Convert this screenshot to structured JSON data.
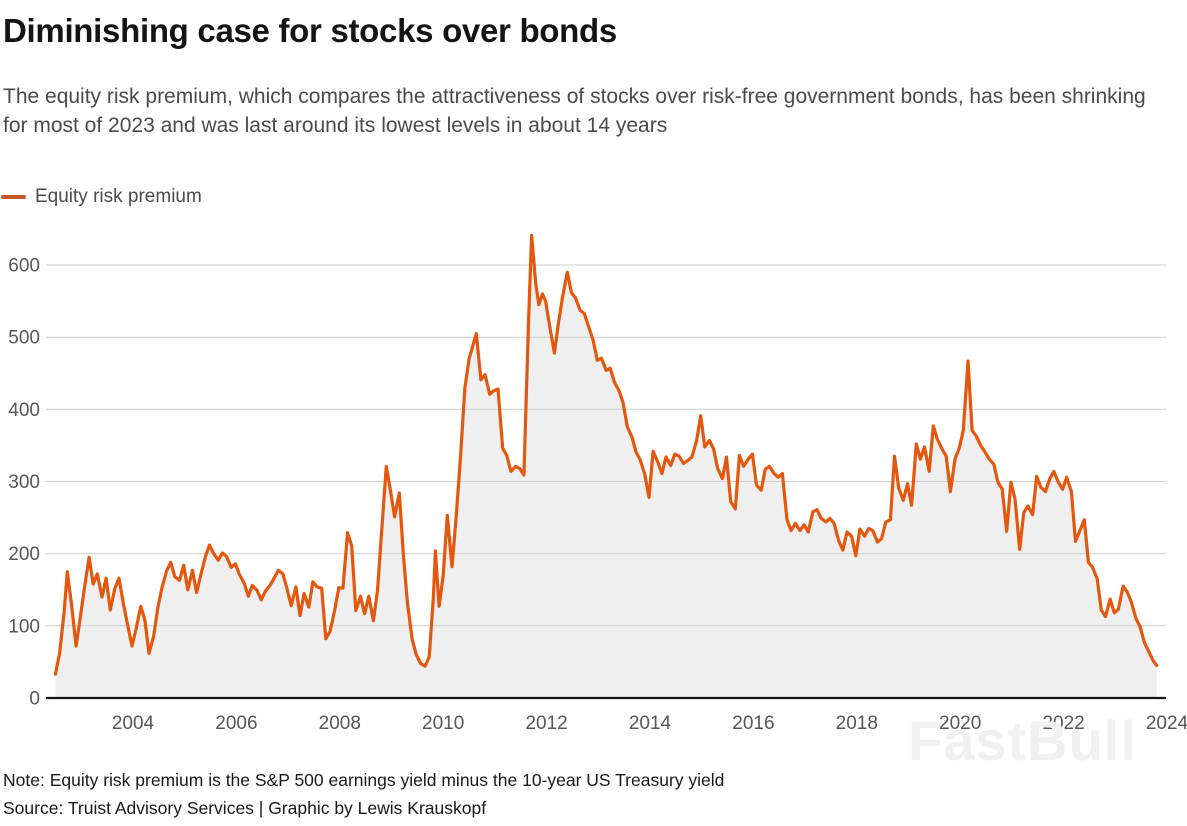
{
  "header": {
    "title": "Diminishing case for stocks over bonds",
    "subtitle": "The equity risk premium, which compares the attractiveness of stocks over risk-free government bonds, has been shrinking for most of 2023 and was last around its lowest levels in about 14 years"
  },
  "legend": {
    "label": "Equity risk premium"
  },
  "watermark": {
    "text": "FastBull"
  },
  "footer": {
    "note": "Note: Equity risk premium is the S&P 500 earnings yield minus the 10-year US Treasury yield",
    "source": "Source: Truist Advisory Services | Graphic by Lewis Krauskopf"
  },
  "chart_data": {
    "type": "area",
    "title": "Equity risk premium (basis points), mid-2002 to late 2023",
    "series_name": "Equity risk premium",
    "xlabel": "",
    "ylabel": "",
    "xlim": [
      2002.45,
      2023.95
    ],
    "ylim": [
      0,
      655
    ],
    "yticks": [
      0,
      100,
      200,
      300,
      400,
      500,
      600
    ],
    "xticks": [
      2004,
      2006,
      2008,
      2010,
      2012,
      2014,
      2016,
      2018,
      2020,
      2022,
      2024
    ],
    "grid": "horizontal",
    "legend_position": "top-left",
    "line_color": "#e4570e",
    "fill_color": "#efefef",
    "grid_color": "#cfcfcf",
    "axis_color": "#161616",
    "tick_label_color": "#565656",
    "points": [
      [
        2002.5,
        33
      ],
      [
        2002.58,
        62
      ],
      [
        2002.67,
        120
      ],
      [
        2002.73,
        175
      ],
      [
        2002.81,
        130
      ],
      [
        2002.9,
        72
      ],
      [
        2002.98,
        112
      ],
      [
        2003.06,
        152
      ],
      [
        2003.15,
        195
      ],
      [
        2003.23,
        158
      ],
      [
        2003.31,
        172
      ],
      [
        2003.4,
        140
      ],
      [
        2003.48,
        166
      ],
      [
        2003.56,
        122
      ],
      [
        2003.65,
        152
      ],
      [
        2003.73,
        166
      ],
      [
        2003.81,
        132
      ],
      [
        2003.9,
        100
      ],
      [
        2003.98,
        72
      ],
      [
        2004.06,
        96
      ],
      [
        2004.15,
        127
      ],
      [
        2004.23,
        108
      ],
      [
        2004.31,
        62
      ],
      [
        2004.4,
        86
      ],
      [
        2004.48,
        125
      ],
      [
        2004.56,
        153
      ],
      [
        2004.65,
        176
      ],
      [
        2004.73,
        188
      ],
      [
        2004.81,
        168
      ],
      [
        2004.9,
        163
      ],
      [
        2004.98,
        184
      ],
      [
        2005.06,
        150
      ],
      [
        2005.15,
        177
      ],
      [
        2005.23,
        146
      ],
      [
        2005.31,
        170
      ],
      [
        2005.4,
        196
      ],
      [
        2005.48,
        212
      ],
      [
        2005.56,
        200
      ],
      [
        2005.65,
        191
      ],
      [
        2005.73,
        201
      ],
      [
        2005.81,
        196
      ],
      [
        2005.9,
        181
      ],
      [
        2005.98,
        186
      ],
      [
        2006.06,
        171
      ],
      [
        2006.15,
        159
      ],
      [
        2006.23,
        141
      ],
      [
        2006.31,
        156
      ],
      [
        2006.4,
        149
      ],
      [
        2006.48,
        136
      ],
      [
        2006.56,
        148
      ],
      [
        2006.65,
        156
      ],
      [
        2006.73,
        166
      ],
      [
        2006.81,
        177
      ],
      [
        2006.9,
        172
      ],
      [
        2006.98,
        151
      ],
      [
        2007.06,
        128
      ],
      [
        2007.15,
        154
      ],
      [
        2007.23,
        114
      ],
      [
        2007.31,
        145
      ],
      [
        2007.4,
        126
      ],
      [
        2007.48,
        161
      ],
      [
        2007.56,
        154
      ],
      [
        2007.65,
        152
      ],
      [
        2007.73,
        82
      ],
      [
        2007.81,
        92
      ],
      [
        2007.9,
        121
      ],
      [
        2007.98,
        153
      ],
      [
        2008.06,
        152
      ],
      [
        2008.15,
        229
      ],
      [
        2008.23,
        211
      ],
      [
        2008.31,
        121
      ],
      [
        2008.4,
        141
      ],
      [
        2008.48,
        117
      ],
      [
        2008.56,
        141
      ],
      [
        2008.65,
        107
      ],
      [
        2008.73,
        149
      ],
      [
        2008.81,
        232
      ],
      [
        2008.9,
        321
      ],
      [
        2008.98,
        287
      ],
      [
        2009.06,
        251
      ],
      [
        2009.15,
        284
      ],
      [
        2009.23,
        198
      ],
      [
        2009.31,
        131
      ],
      [
        2009.4,
        81
      ],
      [
        2009.48,
        60
      ],
      [
        2009.56,
        48
      ],
      [
        2009.65,
        44
      ],
      [
        2009.73,
        57
      ],
      [
        2009.81,
        140
      ],
      [
        2009.85,
        204
      ],
      [
        2009.92,
        127
      ],
      [
        2010.0,
        170
      ],
      [
        2010.08,
        253
      ],
      [
        2010.17,
        182
      ],
      [
        2010.25,
        250
      ],
      [
        2010.33,
        330
      ],
      [
        2010.42,
        430
      ],
      [
        2010.5,
        470
      ],
      [
        2010.58,
        490
      ],
      [
        2010.64,
        505
      ],
      [
        2010.73,
        441
      ],
      [
        2010.81,
        448
      ],
      [
        2010.9,
        421
      ],
      [
        2010.98,
        426
      ],
      [
        2011.06,
        428
      ],
      [
        2011.15,
        346
      ],
      [
        2011.23,
        336
      ],
      [
        2011.31,
        314
      ],
      [
        2011.4,
        321
      ],
      [
        2011.48,
        318
      ],
      [
        2011.56,
        309
      ],
      [
        2011.65,
        520
      ],
      [
        2011.71,
        641
      ],
      [
        2011.79,
        575
      ],
      [
        2011.85,
        545
      ],
      [
        2011.92,
        560
      ],
      [
        2011.98,
        550
      ],
      [
        2012.06,
        515
      ],
      [
        2012.15,
        478
      ],
      [
        2012.23,
        520
      ],
      [
        2012.31,
        556
      ],
      [
        2012.4,
        590
      ],
      [
        2012.48,
        562
      ],
      [
        2012.56,
        554
      ],
      [
        2012.65,
        537
      ],
      [
        2012.73,
        533
      ],
      [
        2012.81,
        515
      ],
      [
        2012.9,
        496
      ],
      [
        2012.98,
        468
      ],
      [
        2013.06,
        471
      ],
      [
        2013.15,
        454
      ],
      [
        2013.23,
        457
      ],
      [
        2013.31,
        438
      ],
      [
        2013.4,
        426
      ],
      [
        2013.48,
        409
      ],
      [
        2013.56,
        376
      ],
      [
        2013.65,
        362
      ],
      [
        2013.73,
        341
      ],
      [
        2013.81,
        330
      ],
      [
        2013.9,
        310
      ],
      [
        2013.98,
        278
      ],
      [
        2014.06,
        342
      ],
      [
        2014.15,
        327
      ],
      [
        2014.23,
        311
      ],
      [
        2014.31,
        334
      ],
      [
        2014.4,
        322
      ],
      [
        2014.48,
        338
      ],
      [
        2014.56,
        335
      ],
      [
        2014.65,
        325
      ],
      [
        2014.73,
        329
      ],
      [
        2014.81,
        334
      ],
      [
        2014.9,
        356
      ],
      [
        2014.98,
        391
      ],
      [
        2015.06,
        348
      ],
      [
        2015.15,
        357
      ],
      [
        2015.23,
        345
      ],
      [
        2015.31,
        318
      ],
      [
        2015.4,
        304
      ],
      [
        2015.48,
        334
      ],
      [
        2015.56,
        272
      ],
      [
        2015.65,
        262
      ],
      [
        2015.73,
        336
      ],
      [
        2015.81,
        321
      ],
      [
        2015.9,
        331
      ],
      [
        2015.98,
        338
      ],
      [
        2016.06,
        295
      ],
      [
        2016.15,
        288
      ],
      [
        2016.23,
        317
      ],
      [
        2016.31,
        321
      ],
      [
        2016.4,
        311
      ],
      [
        2016.48,
        306
      ],
      [
        2016.56,
        311
      ],
      [
        2016.65,
        247
      ],
      [
        2016.73,
        232
      ],
      [
        2016.81,
        242
      ],
      [
        2016.9,
        232
      ],
      [
        2016.98,
        240
      ],
      [
        2017.06,
        230
      ],
      [
        2017.15,
        258
      ],
      [
        2017.23,
        261
      ],
      [
        2017.31,
        249
      ],
      [
        2017.4,
        244
      ],
      [
        2017.48,
        249
      ],
      [
        2017.56,
        242
      ],
      [
        2017.65,
        218
      ],
      [
        2017.73,
        205
      ],
      [
        2017.81,
        230
      ],
      [
        2017.9,
        224
      ],
      [
        2017.98,
        197
      ],
      [
        2018.06,
        234
      ],
      [
        2018.15,
        224
      ],
      [
        2018.23,
        235
      ],
      [
        2018.31,
        232
      ],
      [
        2018.4,
        216
      ],
      [
        2018.48,
        221
      ],
      [
        2018.56,
        244
      ],
      [
        2018.65,
        247
      ],
      [
        2018.73,
        335
      ],
      [
        2018.81,
        291
      ],
      [
        2018.9,
        274
      ],
      [
        2018.98,
        297
      ],
      [
        2019.06,
        267
      ],
      [
        2019.15,
        352
      ],
      [
        2019.23,
        331
      ],
      [
        2019.31,
        348
      ],
      [
        2019.4,
        314
      ],
      [
        2019.48,
        377
      ],
      [
        2019.56,
        358
      ],
      [
        2019.65,
        345
      ],
      [
        2019.73,
        335
      ],
      [
        2019.81,
        286
      ],
      [
        2019.9,
        331
      ],
      [
        2019.98,
        346
      ],
      [
        2020.06,
        371
      ],
      [
        2020.15,
        467
      ],
      [
        2020.23,
        371
      ],
      [
        2020.31,
        363
      ],
      [
        2020.4,
        349
      ],
      [
        2020.48,
        341
      ],
      [
        2020.56,
        331
      ],
      [
        2020.65,
        324
      ],
      [
        2020.73,
        299
      ],
      [
        2020.81,
        290
      ],
      [
        2020.9,
        231
      ],
      [
        2020.98,
        299
      ],
      [
        2021.06,
        276
      ],
      [
        2021.15,
        206
      ],
      [
        2021.23,
        257
      ],
      [
        2021.31,
        266
      ],
      [
        2021.4,
        254
      ],
      [
        2021.48,
        307
      ],
      [
        2021.56,
        292
      ],
      [
        2021.65,
        286
      ],
      [
        2021.73,
        303
      ],
      [
        2021.81,
        314
      ],
      [
        2021.9,
        299
      ],
      [
        2021.98,
        289
      ],
      [
        2022.06,
        306
      ],
      [
        2022.15,
        286
      ],
      [
        2022.23,
        217
      ],
      [
        2022.31,
        231
      ],
      [
        2022.4,
        247
      ],
      [
        2022.48,
        188
      ],
      [
        2022.56,
        181
      ],
      [
        2022.65,
        165
      ],
      [
        2022.73,
        122
      ],
      [
        2022.81,
        113
      ],
      [
        2022.9,
        137
      ],
      [
        2022.98,
        118
      ],
      [
        2023.06,
        123
      ],
      [
        2023.15,
        155
      ],
      [
        2023.23,
        147
      ],
      [
        2023.31,
        133
      ],
      [
        2023.4,
        110
      ],
      [
        2023.48,
        99
      ],
      [
        2023.56,
        77
      ],
      [
        2023.65,
        64
      ],
      [
        2023.73,
        52
      ],
      [
        2023.8,
        45
      ]
    ]
  }
}
